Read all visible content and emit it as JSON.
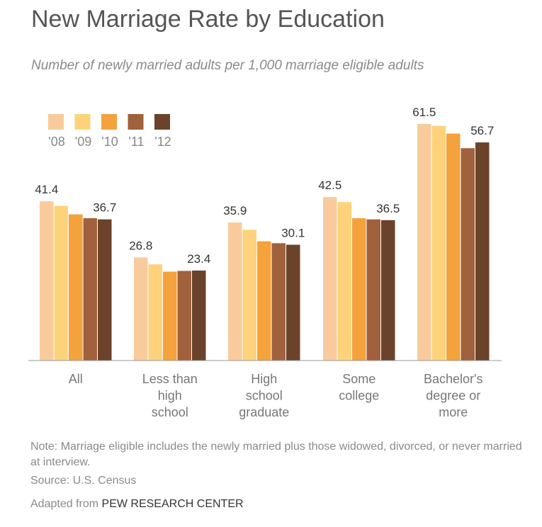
{
  "chart_data": {
    "type": "bar",
    "title": "New Marriage Rate by Education",
    "subtitle": "Number of newly married adults per 1,000 marriage eligible adults",
    "categories": [
      [
        "All"
      ],
      [
        "Less than",
        "high",
        "school"
      ],
      [
        "High",
        "school",
        "graduate"
      ],
      [
        "Some",
        "college"
      ],
      [
        "Bachelor's",
        "degree or",
        "more"
      ]
    ],
    "series": [
      {
        "name": "'08",
        "color": "#f9cb9c",
        "values": [
          41.4,
          26.8,
          35.9,
          42.5,
          61.5
        ]
      },
      {
        "name": "'09",
        "color": "#fdd27a",
        "values": [
          40.2,
          25.0,
          34.0,
          41.2,
          61.0
        ]
      },
      {
        "name": "'10",
        "color": "#f4a23c",
        "values": [
          38.0,
          23.1,
          31.0,
          37.0,
          59.0
        ]
      },
      {
        "name": "'11",
        "color": "#a0613c",
        "values": [
          37.0,
          23.3,
          30.5,
          36.7,
          55.2
        ]
      },
      {
        "name": "'12",
        "color": "#6b432a",
        "values": [
          36.7,
          23.4,
          30.1,
          36.5,
          56.7
        ]
      }
    ],
    "data_labels": [
      {
        "category": 0,
        "series": 0,
        "text": "41.4"
      },
      {
        "category": 0,
        "series": 4,
        "text": "36.7"
      },
      {
        "category": 1,
        "series": 0,
        "text": "26.8"
      },
      {
        "category": 1,
        "series": 4,
        "text": "23.4"
      },
      {
        "category": 2,
        "series": 0,
        "text": "35.9"
      },
      {
        "category": 2,
        "series": 4,
        "text": "30.1"
      },
      {
        "category": 3,
        "series": 0,
        "text": "42.5"
      },
      {
        "category": 3,
        "series": 4,
        "text": "36.5"
      },
      {
        "category": 4,
        "series": 0,
        "text": "61.5"
      },
      {
        "category": 4,
        "series": 4,
        "text": "56.7"
      }
    ],
    "ylim": [
      0,
      61.5
    ],
    "xlabel": "",
    "ylabel": "",
    "legend_placement": "top-left",
    "grid": false
  },
  "footer": {
    "note": "Note: Marriage eligible includes the newly married plus those widowed, divorced, or never married at interview.",
    "source": "Source: U.S. Census",
    "adapted_prefix": "Adapted from",
    "adapted_org": "PEW RESEARCH CENTER"
  }
}
